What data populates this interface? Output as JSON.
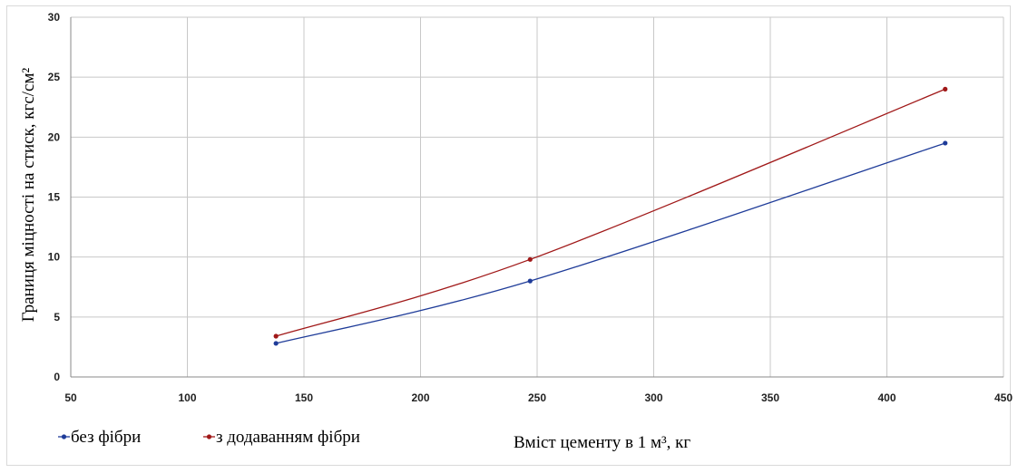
{
  "chart_data": {
    "type": "line",
    "title": "",
    "xlabel": "Вміст цементу в 1 м³, кг",
    "ylabel": "Границя міцності на стиск, кгс/см²",
    "xlim": [
      50,
      450
    ],
    "ylim": [
      0,
      30
    ],
    "xticks": [
      "50",
      "100",
      "150",
      "200",
      "250",
      "300",
      "350",
      "400",
      "450"
    ],
    "yticks": [
      "0",
      "5",
      "10",
      "15",
      "20",
      "25",
      "30"
    ],
    "grid": true,
    "smooth": true,
    "legend_position": "bottom-left",
    "series": [
      {
        "name": "без фібри",
        "color": "#1f3c99",
        "x": [
          138,
          247,
          425
        ],
        "y": [
          2.8,
          8.0,
          19.5
        ]
      },
      {
        "name": "з додаванням фібри",
        "color": "#a01818",
        "x": [
          138,
          247,
          425
        ],
        "y": [
          3.4,
          9.8,
          24.0
        ]
      }
    ]
  }
}
